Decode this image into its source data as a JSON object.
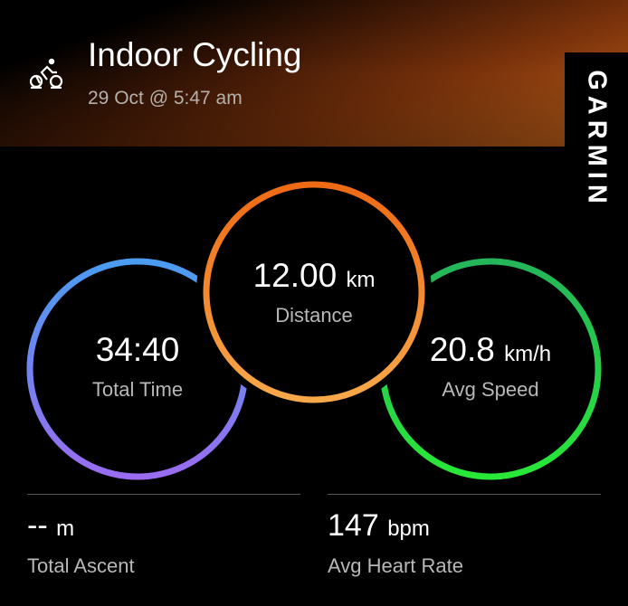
{
  "header": {
    "title": "Indoor Cycling",
    "date": "29 Oct @ 5:47 am",
    "icon": "indoor-cycling-icon"
  },
  "brand": {
    "logo_text": "GARMIN"
  },
  "colors": {
    "time_ring": [
      "#4a9cf0",
      "#9a6cf0"
    ],
    "distance_ring": [
      "#ee6a14",
      "#f7a84a"
    ],
    "speed_ring": [
      "#24b55a",
      "#28e838"
    ]
  },
  "stats": {
    "time": {
      "value": "34:40",
      "unit": "",
      "label": "Total Time"
    },
    "distance": {
      "value": "12.00",
      "unit": "km",
      "label": "Distance"
    },
    "speed": {
      "value": "20.8",
      "unit": "km/h",
      "label": "Avg Speed"
    },
    "ascent": {
      "value": "--",
      "unit": "m",
      "label": "Total Ascent"
    },
    "heart_rate": {
      "value": "147",
      "unit": "bpm",
      "label": "Avg Heart Rate"
    }
  }
}
